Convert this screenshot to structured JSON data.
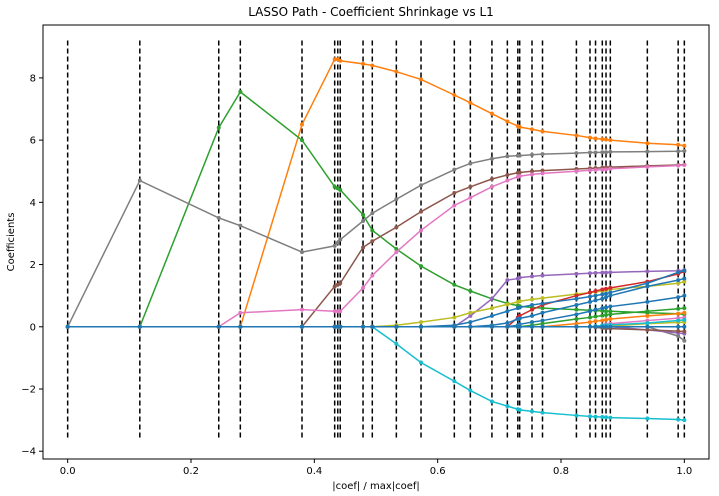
{
  "chart_data": {
    "type": "line",
    "title": "LASSO Path - Coefficient Shrinkage vs L1",
    "xlabel": "|coef| / max|coef|",
    "ylabel": "Coefficients",
    "xlim": [
      -0.04,
      1.04
    ],
    "ylim": [
      -4.25,
      9.7
    ],
    "xticks": [
      0.0,
      0.2,
      0.4,
      0.6,
      0.8,
      1.0
    ],
    "xtick_labels": [
      "0.0",
      "0.2",
      "0.4",
      "0.6",
      "0.8",
      "1.0"
    ],
    "yticks": [
      -4,
      -2,
      0,
      2,
      4,
      6,
      8
    ],
    "ytick_labels": [
      "−4",
      "−2",
      "0",
      "2",
      "4",
      "6",
      "8"
    ],
    "grid": false,
    "legend": "none",
    "vlines": {
      "x": [
        0.0,
        0.117,
        0.245,
        0.28,
        0.38,
        0.433,
        0.438,
        0.442,
        0.479,
        0.494,
        0.533,
        0.573,
        0.627,
        0.653,
        0.688,
        0.713,
        0.73,
        0.733,
        0.753,
        0.77,
        0.825,
        0.847,
        0.856,
        0.867,
        0.873,
        0.88,
        0.94,
        0.99,
        1.0
      ],
      "ymin": -3.6,
      "ymax": 9.2,
      "color": "#000000",
      "style": "dashed"
    },
    "x": [
      0.0,
      0.117,
      0.245,
      0.28,
      0.38,
      0.433,
      0.438,
      0.442,
      0.479,
      0.494,
      0.533,
      0.573,
      0.627,
      0.653,
      0.688,
      0.713,
      0.73,
      0.733,
      0.753,
      0.77,
      0.825,
      0.847,
      0.856,
      0.867,
      0.873,
      0.88,
      0.94,
      0.99,
      1.0
    ],
    "series": [
      {
        "color": "#ff7f0e",
        "values": [
          0,
          0,
          0,
          0,
          6.5,
          8.6,
          8.6,
          8.55,
          8.45,
          8.4,
          8.2,
          7.95,
          7.45,
          7.2,
          6.85,
          6.6,
          6.45,
          6.42,
          6.35,
          6.28,
          6.15,
          6.08,
          6.05,
          6.03,
          6.02,
          6.0,
          5.9,
          5.85,
          5.82
        ]
      },
      {
        "color": "#2ca02c",
        "values": [
          0,
          0,
          6.4,
          7.55,
          6.0,
          4.5,
          4.45,
          4.4,
          3.6,
          3.1,
          2.5,
          1.95,
          1.35,
          1.15,
          0.9,
          0.75,
          0.68,
          0.66,
          0.62,
          0.6,
          0.55,
          0.53,
          0.52,
          0.51,
          0.5,
          0.5,
          0.45,
          0.42,
          0.4
        ]
      },
      {
        "color": "#7f7f7f",
        "values": [
          0,
          4.7,
          3.5,
          3.25,
          2.4,
          2.6,
          2.7,
          2.8,
          3.4,
          3.65,
          4.1,
          4.55,
          5.05,
          5.25,
          5.4,
          5.48,
          5.5,
          5.5,
          5.53,
          5.55,
          5.58,
          5.6,
          5.6,
          5.61,
          5.61,
          5.62,
          5.63,
          5.64,
          5.65
        ]
      },
      {
        "color": "#8c564b",
        "values": [
          0,
          0,
          0,
          0,
          0,
          1.3,
          1.35,
          1.4,
          2.55,
          2.75,
          3.2,
          3.7,
          4.3,
          4.5,
          4.75,
          4.88,
          4.95,
          4.96,
          5.0,
          5.02,
          5.07,
          5.09,
          5.1,
          5.11,
          5.12,
          5.13,
          5.17,
          5.2,
          5.21
        ]
      },
      {
        "color": "#e377c2",
        "values": [
          0,
          0,
          0,
          0.45,
          0.55,
          0.5,
          0.5,
          0.5,
          1.25,
          1.65,
          2.4,
          3.1,
          3.9,
          4.15,
          4.5,
          4.7,
          4.82,
          4.84,
          4.9,
          4.93,
          5.0,
          5.03,
          5.04,
          5.05,
          5.06,
          5.08,
          5.14,
          5.18,
          5.2
        ]
      },
      {
        "color": "#17becf",
        "values": [
          0,
          0,
          0,
          0,
          0,
          0,
          0,
          0,
          0,
          0,
          -0.55,
          -1.15,
          -1.75,
          -2.05,
          -2.4,
          -2.55,
          -2.65,
          -2.67,
          -2.72,
          -2.76,
          -2.85,
          -2.88,
          -2.89,
          -2.9,
          -2.91,
          -2.92,
          -2.95,
          -2.98,
          -3.0
        ]
      },
      {
        "color": "#9467bd",
        "values": [
          0,
          0,
          0,
          0,
          0,
          0,
          0,
          0,
          0,
          0,
          0,
          0,
          0,
          0.35,
          0.9,
          1.5,
          1.55,
          1.58,
          1.62,
          1.65,
          1.7,
          1.72,
          1.73,
          1.74,
          1.74,
          1.75,
          1.78,
          1.8,
          1.82
        ]
      },
      {
        "color": "#bcbd22",
        "values": [
          0,
          0,
          0,
          0,
          0,
          0,
          0,
          0,
          0,
          0,
          0.05,
          0.15,
          0.3,
          0.45,
          0.6,
          0.72,
          0.8,
          0.82,
          0.88,
          0.92,
          1.05,
          1.1,
          1.12,
          1.15,
          1.17,
          1.2,
          1.3,
          1.4,
          1.45
        ]
      },
      {
        "color": "#d62728",
        "values": [
          0,
          0,
          0,
          0,
          0,
          0,
          0,
          0,
          0,
          0,
          0,
          0,
          0,
          0,
          0,
          0,
          0.3,
          0.35,
          0.55,
          0.7,
          1.0,
          1.1,
          1.15,
          1.2,
          1.22,
          1.25,
          1.45,
          1.7,
          1.78
        ]
      },
      {
        "color": "#1f77b4",
        "values": [
          0,
          0,
          0,
          0,
          0,
          0,
          0,
          0,
          0,
          0,
          0,
          0,
          0.05,
          0.15,
          0.35,
          0.5,
          0.6,
          0.62,
          0.7,
          0.75,
          0.9,
          0.97,
          1.0,
          1.04,
          1.06,
          1.1,
          1.4,
          1.75,
          1.8
        ]
      },
      {
        "color": "#1f77b4",
        "values": [
          0,
          0,
          0,
          0,
          0,
          0,
          0,
          0,
          0,
          0,
          0,
          0,
          0,
          0,
          0.05,
          0.12,
          0.25,
          0.27,
          0.35,
          0.45,
          0.7,
          0.8,
          0.85,
          0.9,
          0.95,
          1.0,
          1.3,
          1.5,
          1.55
        ]
      },
      {
        "color": "#1f77b4",
        "values": [
          0,
          0,
          0,
          0,
          0,
          0,
          0,
          0,
          0,
          0,
          0,
          0,
          0,
          0,
          0,
          0,
          0.05,
          0.08,
          0.15,
          0.2,
          0.4,
          0.5,
          0.55,
          0.6,
          0.62,
          0.65,
          0.8,
          0.95,
          1.0
        ]
      },
      {
        "color": "#2ca02c",
        "values": [
          0,
          0,
          0,
          0,
          0,
          0,
          0,
          0,
          0,
          0,
          0,
          0,
          0,
          0,
          0,
          0,
          0,
          0,
          0.05,
          0.1,
          0.25,
          0.3,
          0.33,
          0.36,
          0.38,
          0.4,
          0.5,
          0.58,
          0.6
        ]
      },
      {
        "color": "#ff7f0e",
        "values": [
          0,
          0,
          0,
          0,
          0,
          0,
          0,
          0,
          0,
          0,
          0,
          0,
          0,
          0,
          0,
          0,
          0,
          0,
          0,
          0,
          0.1,
          0.15,
          0.18,
          0.2,
          0.22,
          0.25,
          0.35,
          0.42,
          0.45
        ]
      },
      {
        "color": "#e377c2",
        "values": [
          0,
          0,
          0,
          0,
          0,
          0,
          0,
          0,
          0,
          0,
          0,
          0,
          0,
          0,
          0,
          0,
          0,
          0,
          0,
          0,
          0,
          0,
          0,
          0.05,
          0.08,
          0.1,
          0.2,
          0.28,
          0.3
        ]
      },
      {
        "color": "#7f7f7f",
        "values": [
          0,
          0,
          0,
          0,
          0,
          0,
          0,
          0,
          0,
          0,
          0,
          0,
          0,
          0,
          0,
          0,
          0,
          0,
          0,
          0,
          0,
          0,
          0,
          0,
          0,
          0,
          0,
          -0.3,
          -0.45
        ]
      },
      {
        "color": "#9467bd",
        "values": [
          0,
          0,
          0,
          0,
          0,
          0,
          0,
          0,
          0,
          0,
          0,
          0,
          0,
          0,
          0,
          0,
          0,
          0,
          0,
          0,
          0,
          0,
          0,
          0,
          0,
          0,
          -0.1,
          -0.2,
          -0.22
        ]
      },
      {
        "color": "#8c564b",
        "values": [
          0,
          0,
          0,
          0,
          0,
          0,
          0,
          0,
          0,
          0,
          0,
          0,
          0,
          0,
          0,
          0,
          0,
          0,
          0,
          0,
          0,
          0,
          -0.02,
          -0.04,
          -0.05,
          -0.06,
          -0.1,
          -0.14,
          -0.15
        ]
      },
      {
        "color": "#bcbd22",
        "values": [
          0,
          0,
          0,
          0,
          0,
          0,
          0,
          0,
          0,
          0,
          0,
          0,
          0,
          0,
          0,
          0,
          0,
          0,
          0,
          0,
          0,
          0,
          0,
          0,
          0,
          0.02,
          0.1,
          0.14,
          0.15
        ]
      },
      {
        "color": "#17becf",
        "values": [
          0,
          0,
          0,
          0,
          0,
          0,
          0,
          0,
          0,
          0,
          0,
          0,
          0,
          0,
          0,
          0,
          0,
          0,
          0,
          0,
          0,
          0,
          0.02,
          0.04,
          0.05,
          0.06,
          0.12,
          0.2,
          0.22
        ]
      },
      {
        "color": "#1f77b4",
        "values": [
          0,
          0,
          0,
          0,
          0,
          0,
          0,
          0,
          0,
          0,
          0,
          0,
          0,
          0,
          0,
          0,
          0,
          0,
          0,
          0,
          0,
          0,
          0,
          0,
          0,
          0,
          0,
          0,
          0
        ]
      }
    ]
  }
}
